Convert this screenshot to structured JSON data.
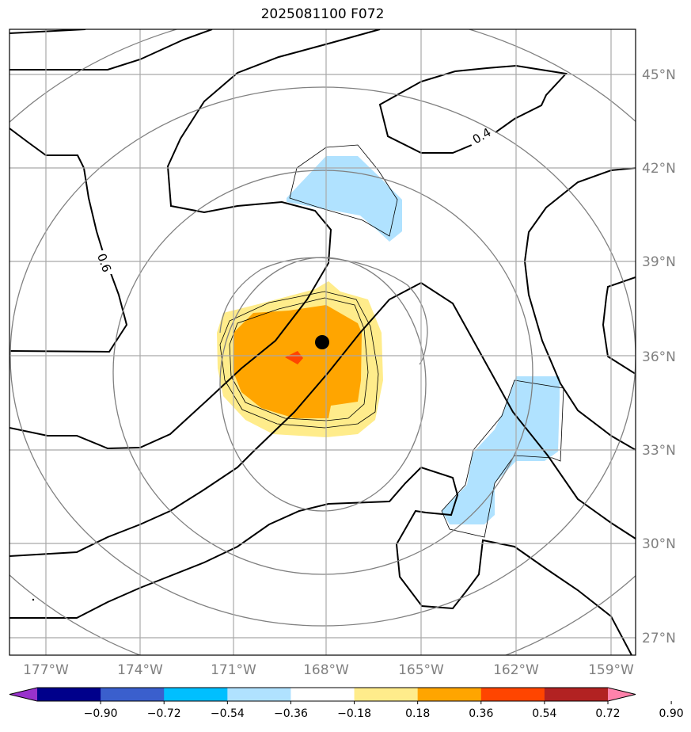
{
  "title": "2025081100 F072",
  "lat_labels": [
    "45°N",
    "42°N",
    "39°N",
    "36°N",
    "33°N",
    "30°N",
    "27°N"
  ],
  "lon_labels": [
    "177°W",
    "174°W",
    "171°W",
    "168°W",
    "165°W",
    "162°W",
    "159°W"
  ],
  "contour_labels": [
    "0.6",
    "0.4"
  ],
  "colorbar": {
    "labels": [
      "−0.90",
      "−0.72",
      "−0.54",
      "−0.36",
      "−0.18",
      "0.18",
      "0.36",
      "0.54",
      "0.72",
      "0.90"
    ],
    "colors": [
      "#9932cc",
      "#00008b",
      "#3a5fcd",
      "#00bfff",
      "#b0e2ff",
      "#ffffff",
      "#ffec8b",
      "#ffa500",
      "#ff4500",
      "#b22222",
      "#ff82ab"
    ]
  },
  "map": {
    "center_marker_color": "#000000",
    "colors": {
      "light_blue": "#b0e2ff",
      "light_yellow": "#ffec8b",
      "orange": "#ffa500",
      "red": "#ff4500",
      "grid": "#a9a9a9",
      "range_rings": "#808080"
    }
  }
}
